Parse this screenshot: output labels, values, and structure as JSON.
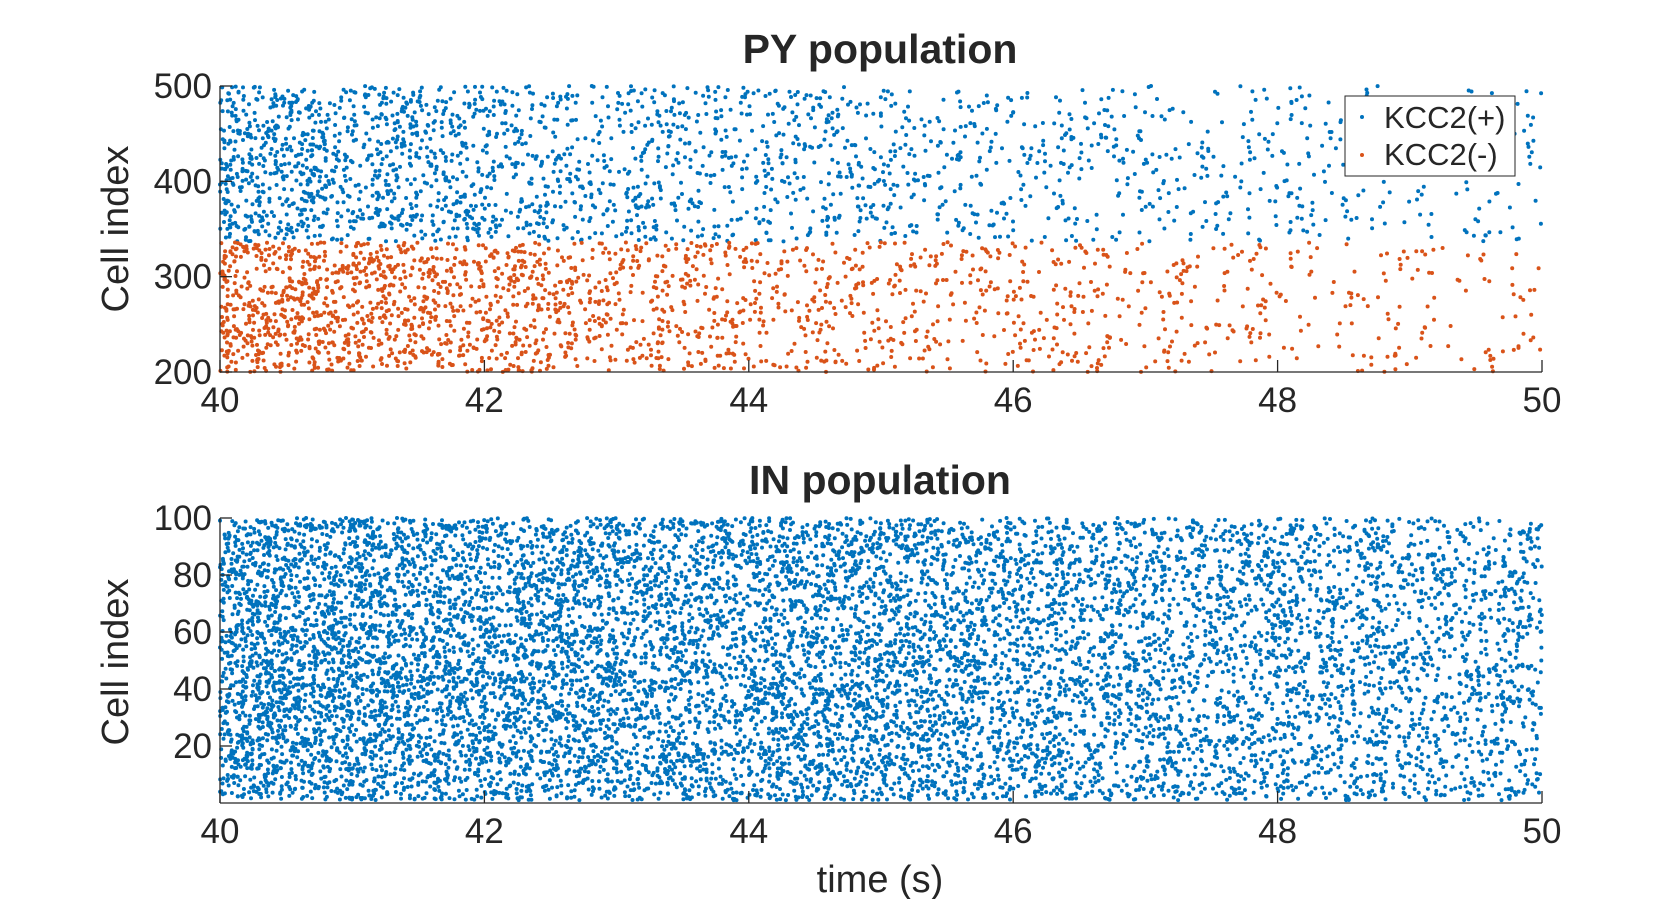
{
  "chart_data": [
    {
      "type": "scatter",
      "title": "PY population",
      "xlabel": "",
      "ylabel": "Cell index",
      "xlim": [
        40,
        50
      ],
      "ylim": [
        200,
        500
      ],
      "xticks": [
        "40",
        "42",
        "44",
        "46",
        "48",
        "50"
      ],
      "yticks": [
        "200",
        "300",
        "400",
        "500"
      ],
      "legend": {
        "placement": "top-right",
        "entries": [
          "KCC2(+)",
          "KCC2(-)"
        ]
      },
      "series": [
        {
          "name": "KCC2(+)",
          "color": "#0072BD",
          "cell_range": [
            337,
            500
          ],
          "approx_spike_count": 2300,
          "rate_profile": "dense near t=40, decaying toward t=50"
        },
        {
          "name": "KCC2(-)",
          "color": "#D95319",
          "cell_range": [
            200,
            336
          ],
          "approx_spike_count": 2100,
          "rate_profile": "dense near t=40, decaying toward t=50"
        }
      ],
      "grid": false
    },
    {
      "type": "scatter",
      "title": "IN population",
      "xlabel": "time (s)",
      "ylabel": "Cell index",
      "xlim": [
        40,
        50
      ],
      "ylim": [
        0,
        100
      ],
      "xticks": [
        "40",
        "42",
        "44",
        "46",
        "48",
        "50"
      ],
      "yticks": [
        "20",
        "40",
        "60",
        "80",
        "100"
      ],
      "series": [
        {
          "color": "#0072BD",
          "cell_range": [
            1,
            100
          ],
          "approx_spike_count": 11000,
          "rate_profile": "very dense near t=40, gradually sparser toward t=50"
        }
      ],
      "grid": false
    }
  ]
}
